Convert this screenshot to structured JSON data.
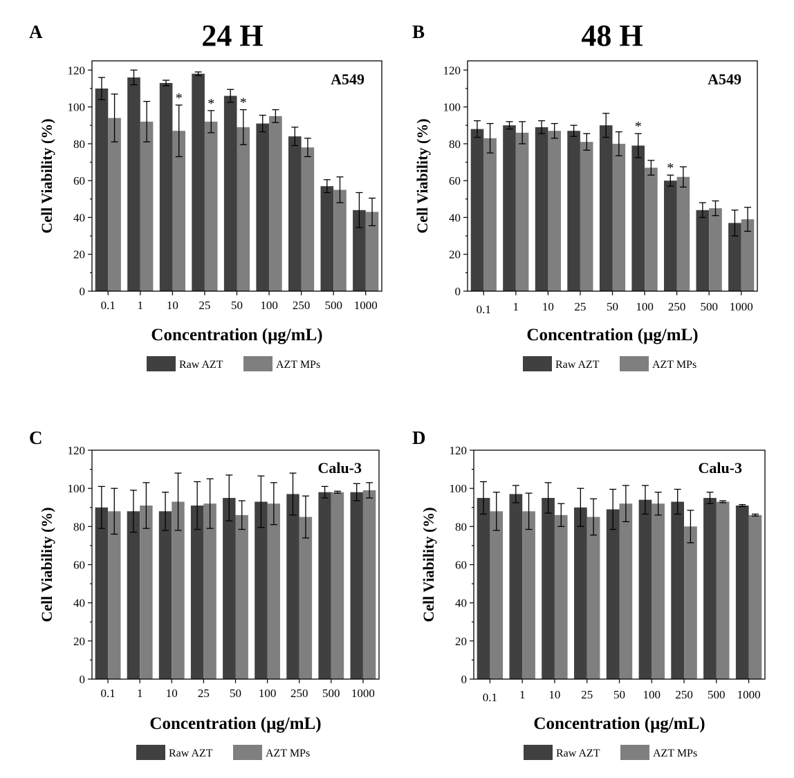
{
  "colors": {
    "raw": "#404040",
    "mps": "#7f7f7f"
  },
  "chart_data": [
    {
      "id": "A",
      "letter": "A",
      "panel_title": "24 H",
      "type": "bar",
      "cell_line": "A549",
      "xlabel": "Concentration (μg/mL)",
      "ylabel": "Cell Viability (%)",
      "ylim": [
        0,
        125
      ],
      "yticks": [
        0,
        20,
        40,
        60,
        80,
        100,
        120
      ],
      "categories": [
        "0.1",
        "1",
        "10",
        "25",
        "50",
        "100",
        "250",
        "500",
        "1000"
      ],
      "series": [
        {
          "name": "Raw AZT",
          "values": [
            110,
            116,
            113,
            118,
            106,
            91,
            84,
            57,
            44
          ],
          "errors": [
            6,
            4,
            1.5,
            1,
            3.5,
            4.5,
            5,
            3.5,
            9.5
          ]
        },
        {
          "name": "AZT MPs",
          "values": [
            94,
            92,
            87,
            92,
            89,
            95,
            78,
            55,
            43
          ],
          "errors": [
            13,
            11,
            14,
            6,
            9.5,
            3.5,
            5,
            7,
            7.5
          ]
        }
      ],
      "significance": [
        {
          "category": "10",
          "series": "AZT MPs",
          "label": "*"
        },
        {
          "category": "25",
          "series": "AZT MPs",
          "label": "*"
        },
        {
          "category": "50",
          "series": "AZT MPs",
          "label": "*"
        }
      ],
      "legend": [
        "Raw AZT",
        "AZT MPs"
      ]
    },
    {
      "id": "B",
      "letter": "B",
      "panel_title": "48 H",
      "type": "bar",
      "cell_line": "A549",
      "xlabel": "Concentration (μg/mL)",
      "ylabel": "Cell Viability (%)",
      "ylim": [
        0,
        125
      ],
      "yticks": [
        0,
        20,
        40,
        60,
        80,
        100,
        120
      ],
      "categories": [
        "0.1",
        "1",
        "10",
        "25",
        "50",
        "100",
        "250",
        "500",
        "1000"
      ],
      "series": [
        {
          "name": "Raw AZT",
          "values": [
            88,
            90,
            89,
            87,
            90,
            79,
            60,
            44,
            37
          ],
          "errors": [
            4.5,
            2,
            3.5,
            3,
            6.5,
            6.5,
            3,
            4,
            7
          ]
        },
        {
          "name": "AZT MPs",
          "values": [
            83,
            86,
            87,
            81,
            80,
            67,
            62,
            45,
            39
          ],
          "errors": [
            8,
            6,
            4,
            4.5,
            6.5,
            4,
            5.5,
            4,
            6.5
          ]
        }
      ],
      "significance": [
        {
          "category": "100",
          "series": "Raw AZT",
          "label": "*"
        },
        {
          "category": "250",
          "series": "Raw AZT",
          "label": "*"
        }
      ],
      "legend": [
        "Raw AZT",
        "AZT MPs"
      ]
    },
    {
      "id": "C",
      "letter": "C",
      "panel_title": "",
      "type": "bar",
      "cell_line": "Calu-3",
      "xlabel": "Concentration (μg/mL)",
      "ylabel": "Cell Viability (%)",
      "ylim": [
        0,
        120
      ],
      "yticks": [
        0,
        20,
        40,
        60,
        80,
        100,
        120
      ],
      "categories": [
        "0.1",
        "1",
        "10",
        "25",
        "50",
        "100",
        "250",
        "500",
        "1000"
      ],
      "series": [
        {
          "name": "Raw AZT",
          "values": [
            90,
            88,
            88,
            91,
            95,
            93,
            97,
            98,
            98
          ],
          "errors": [
            11,
            11,
            10,
            12.5,
            12,
            13.5,
            11,
            3,
            4.5
          ]
        },
        {
          "name": "AZT MPs",
          "values": [
            88,
            91,
            93,
            92,
            86,
            92,
            85,
            98,
            99
          ],
          "errors": [
            12,
            12,
            15,
            13,
            7.5,
            11,
            11,
            0.5,
            4
          ]
        }
      ],
      "significance": [],
      "legend": [
        "Raw AZT",
        "AZT MPs"
      ]
    },
    {
      "id": "D",
      "letter": "D",
      "panel_title": "",
      "type": "bar",
      "cell_line": "Calu-3",
      "xlabel": "Concentration (μg/mL)",
      "ylabel": "Cell Viability (%)",
      "ylim": [
        0,
        120
      ],
      "yticks": [
        0,
        20,
        40,
        60,
        80,
        100,
        120
      ],
      "categories": [
        "0.1",
        "1",
        "10",
        "25",
        "50",
        "100",
        "250",
        "500",
        "1000"
      ],
      "series": [
        {
          "name": "Raw AZT",
          "values": [
            95,
            97,
            95,
            90,
            89,
            94,
            93,
            95,
            91
          ],
          "errors": [
            8.5,
            4.5,
            8,
            10,
            10.5,
            7.5,
            6.5,
            3,
            0.5
          ]
        },
        {
          "name": "AZT MPs",
          "values": [
            88,
            88,
            86,
            85,
            92,
            92,
            80,
            93,
            86
          ],
          "errors": [
            10,
            9.5,
            6,
            9.5,
            9.5,
            6,
            8.5,
            0.5,
            0.5
          ]
        }
      ],
      "significance": [],
      "legend": [
        "Raw AZT",
        "AZT MPs"
      ]
    }
  ]
}
